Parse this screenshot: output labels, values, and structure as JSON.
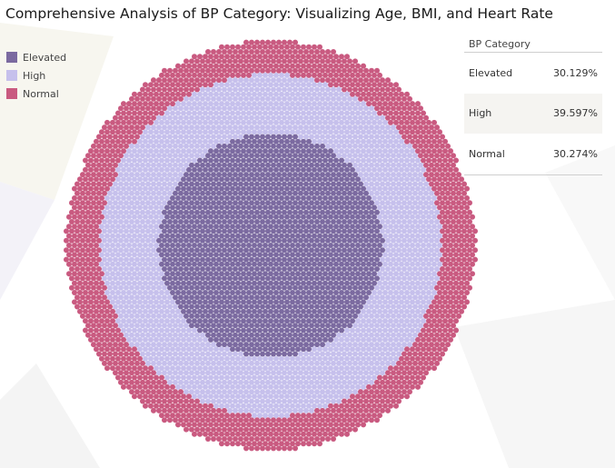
{
  "title": "Comprehensive Analysis of BP Category: Visualizing Age, BMI, and Heart Rate",
  "legend": [
    {
      "label": "Elevated",
      "color": "#7b6aa0"
    },
    {
      "label": "High",
      "color": "#c6c0ec"
    },
    {
      "label": "Normal",
      "color": "#c95a80"
    }
  ],
  "table": {
    "header": "BP Category",
    "rows": [
      {
        "category": "Elevated",
        "value": "30.129%"
      },
      {
        "category": "High",
        "value": "39.597%"
      },
      {
        "category": "Normal",
        "value": "30.274%"
      }
    ]
  },
  "chart_data": {
    "type": "packed-circles",
    "title": "Comprehensive Analysis of BP Category: Visualizing Age, BMI, and Heart Rate",
    "legend_position": "top-left",
    "series": [
      {
        "name": "Elevated",
        "value": 30.129,
        "color": "#7b6aa0",
        "position": "inner"
      },
      {
        "name": "High",
        "value": 39.597,
        "color": "#c6c0ec",
        "position": "middle"
      },
      {
        "name": "Normal",
        "value": 30.274,
        "color": "#c95a80",
        "position": "outer"
      }
    ]
  }
}
